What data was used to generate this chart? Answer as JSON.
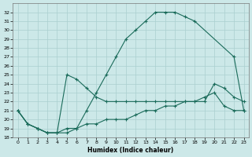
{
  "xlabel": "Humidex (Indice chaleur)",
  "bg_color": "#cce8e8",
  "grid_color": "#aacfcf",
  "line_color": "#1a6b5a",
  "xlim": [
    -0.5,
    23.5
  ],
  "ylim": [
    18,
    33
  ],
  "yticks": [
    18,
    19,
    20,
    21,
    22,
    23,
    24,
    25,
    26,
    27,
    28,
    29,
    30,
    31,
    32
  ],
  "xticks": [
    0,
    1,
    2,
    3,
    4,
    5,
    6,
    7,
    8,
    9,
    10,
    11,
    12,
    13,
    14,
    15,
    16,
    17,
    18,
    19,
    20,
    21,
    22,
    23
  ],
  "series": [
    {
      "x": [
        0,
        1,
        2,
        3,
        4,
        5,
        6,
        7,
        8,
        9,
        10,
        11,
        12,
        13,
        14,
        15,
        16,
        17,
        18,
        22,
        23
      ],
      "y": [
        21,
        19.5,
        19,
        18.5,
        18.5,
        19,
        19,
        21,
        23,
        25,
        27,
        29,
        30,
        31,
        32,
        32,
        32,
        31.5,
        31,
        27,
        21
      ]
    },
    {
      "x": [
        0,
        1,
        2,
        3,
        4,
        5,
        6,
        7,
        8,
        9,
        10,
        11,
        12,
        13,
        14,
        15,
        16,
        17,
        18,
        19,
        20,
        21,
        22,
        23
      ],
      "y": [
        21,
        19.5,
        19,
        18.5,
        18.5,
        25,
        24.5,
        23.5,
        22.5,
        22,
        22,
        22,
        22,
        22,
        22,
        22,
        22,
        22,
        22,
        22,
        24,
        23.5,
        22.5,
        22
      ]
    },
    {
      "x": [
        0,
        1,
        2,
        3,
        4,
        5,
        6,
        7,
        8,
        9,
        10,
        11,
        12,
        13,
        14,
        15,
        16,
        17,
        18,
        19,
        20,
        21,
        22,
        23
      ],
      "y": [
        21,
        19.5,
        19,
        18.5,
        18.5,
        18.5,
        19,
        19.5,
        19.5,
        20,
        20,
        20,
        20.5,
        21,
        21,
        21.5,
        21.5,
        22,
        22,
        22.5,
        23,
        21.5,
        21,
        21
      ]
    }
  ]
}
